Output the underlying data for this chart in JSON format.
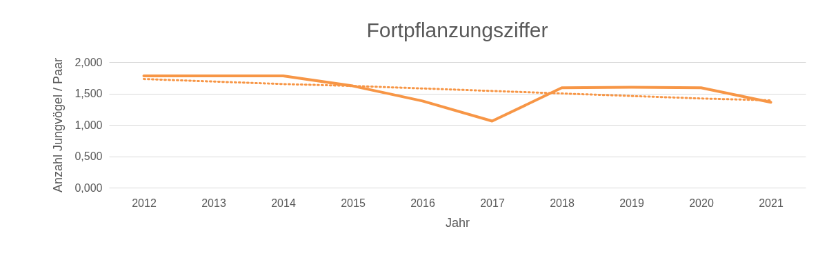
{
  "chart_data": {
    "type": "line",
    "title": "Fortpflanzungsziffer",
    "xlabel": "Jahr",
    "ylabel": "Anzahl Jungvögel / Paar",
    "categories": [
      "2012",
      "2013",
      "2014",
      "2015",
      "2016",
      "2017",
      "2018",
      "2019",
      "2020",
      "2021"
    ],
    "series": [
      {
        "color": "#f79646",
        "line_style": "solid",
        "values": [
          1.78,
          1.78,
          1.78,
          1.62,
          1.38,
          1.06,
          1.59,
          1.6,
          1.59,
          1.36
        ]
      },
      {
        "color": "#f79646",
        "line_style": "dotted",
        "values": [
          1.73,
          1.69,
          1.65,
          1.62,
          1.58,
          1.54,
          1.5,
          1.46,
          1.42,
          1.39
        ]
      }
    ],
    "ylim": [
      0,
      2
    ],
    "yticks": [
      {
        "value": 0,
        "label": "0,000"
      },
      {
        "value": 0.5,
        "label": "0,500"
      },
      {
        "value": 1,
        "label": "1,000"
      },
      {
        "value": 1.5,
        "label": "1,500"
      },
      {
        "value": 2,
        "label": "2,000"
      }
    ],
    "grid": "y",
    "legend": false,
    "marker": "none"
  }
}
